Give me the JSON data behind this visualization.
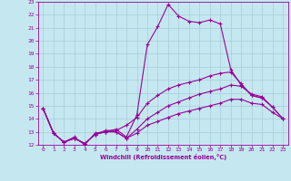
{
  "xlabel": "Windchill (Refroidissement éolien,°C)",
  "background_color": "#c5e8f0",
  "grid_color": "#a8ccd8",
  "line_color": "#990099",
  "xlim": [
    -0.5,
    23.5
  ],
  "ylim": [
    12,
    23
  ],
  "xticks": [
    0,
    1,
    2,
    3,
    4,
    5,
    6,
    7,
    8,
    9,
    10,
    11,
    12,
    13,
    14,
    15,
    16,
    17,
    18,
    19,
    20,
    21,
    22,
    23
  ],
  "yticks": [
    12,
    13,
    14,
    15,
    16,
    17,
    18,
    19,
    20,
    21,
    22,
    23
  ],
  "line1_x": [
    0,
    1,
    2,
    3,
    4,
    5,
    6,
    7,
    8,
    9,
    10,
    11,
    12,
    13,
    14,
    15,
    16,
    17,
    18,
    19,
    20,
    21
  ],
  "line1_y": [
    14.8,
    12.9,
    12.2,
    12.6,
    12.0,
    12.9,
    13.0,
    13.2,
    12.6,
    14.3,
    19.7,
    21.1,
    22.8,
    21.9,
    21.5,
    21.4,
    21.6,
    21.3,
    17.8,
    16.6,
    15.8,
    15.6
  ],
  "line2_x": [
    0,
    1,
    2,
    3,
    4,
    5,
    6,
    7,
    8,
    9,
    10,
    11,
    12,
    13,
    14,
    15,
    16,
    17,
    18,
    19,
    20,
    21,
    22,
    23
  ],
  "line2_y": [
    14.8,
    12.9,
    12.2,
    12.5,
    12.1,
    12.8,
    13.1,
    13.1,
    13.5,
    14.1,
    15.2,
    15.8,
    16.3,
    16.6,
    16.8,
    17.0,
    17.3,
    17.5,
    17.6,
    16.7,
    15.8,
    15.6,
    14.9,
    14.0
  ],
  "line3_x": [
    0,
    1,
    2,
    3,
    4,
    5,
    6,
    7,
    8,
    9,
    10,
    11,
    12,
    13,
    14,
    15,
    16,
    17,
    18,
    19,
    20,
    21,
    22,
    23
  ],
  "line3_y": [
    14.8,
    12.9,
    12.2,
    12.5,
    12.1,
    12.8,
    13.0,
    13.0,
    12.5,
    13.2,
    14.0,
    14.5,
    15.0,
    15.3,
    15.6,
    15.9,
    16.1,
    16.3,
    16.6,
    16.5,
    15.9,
    15.7,
    14.9,
    14.0
  ],
  "line4_x": [
    0,
    1,
    2,
    3,
    4,
    5,
    6,
    7,
    8,
    9,
    10,
    11,
    12,
    13,
    14,
    15,
    16,
    17,
    18,
    19,
    20,
    21,
    22,
    23
  ],
  "line4_y": [
    14.8,
    12.9,
    12.2,
    12.5,
    12.1,
    12.8,
    13.0,
    13.0,
    12.5,
    12.9,
    13.5,
    13.8,
    14.1,
    14.4,
    14.6,
    14.8,
    15.0,
    15.2,
    15.5,
    15.5,
    15.2,
    15.1,
    14.5,
    14.0
  ],
  "marker_size": 3.5,
  "line_width": 0.8
}
